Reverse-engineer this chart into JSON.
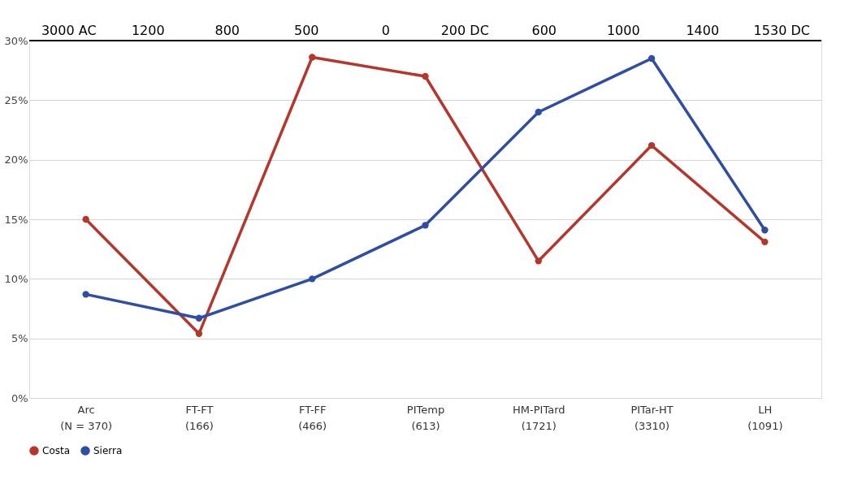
{
  "chart_data": {
    "type": "line",
    "categories": [
      "Arc\n(N = 370)",
      "FT-FT\n(166)",
      "FT-FF\n(466)",
      "PITemp\n(613)",
      "HM-PITard\n(1721)",
      "PITar-HT\n(3310)",
      "LH\n(1091)"
    ],
    "series": [
      {
        "name": "Costa",
        "color": "#b5372c",
        "values": [
          15,
          5.4,
          28.6,
          27,
          11.5,
          21.2,
          13.1
        ]
      },
      {
        "name": "Sierra",
        "color": "#2f4ea3",
        "values": [
          8.7,
          6.7,
          10,
          14.5,
          24,
          28.5,
          14.1
        ]
      }
    ],
    "ylim": [
      0,
      30
    ],
    "yticks": [
      {
        "value": 0,
        "label": "0%"
      },
      {
        "value": 5,
        "label": "5%"
      },
      {
        "value": 10,
        "label": "10%"
      },
      {
        "value": 15,
        "label": "15%"
      },
      {
        "value": 20,
        "label": "20%"
      },
      {
        "value": 25,
        "label": "25%"
      },
      {
        "value": 30,
        "label": "30%"
      }
    ],
    "annotations": [
      "3000 AC",
      "1200",
      "800",
      "500",
      "0",
      "200 DC",
      "600",
      "1000",
      "1400",
      "1530 DC"
    ],
    "grid": "y",
    "legend": "bottom",
    "marker": "circle",
    "line_style": "solid"
  }
}
